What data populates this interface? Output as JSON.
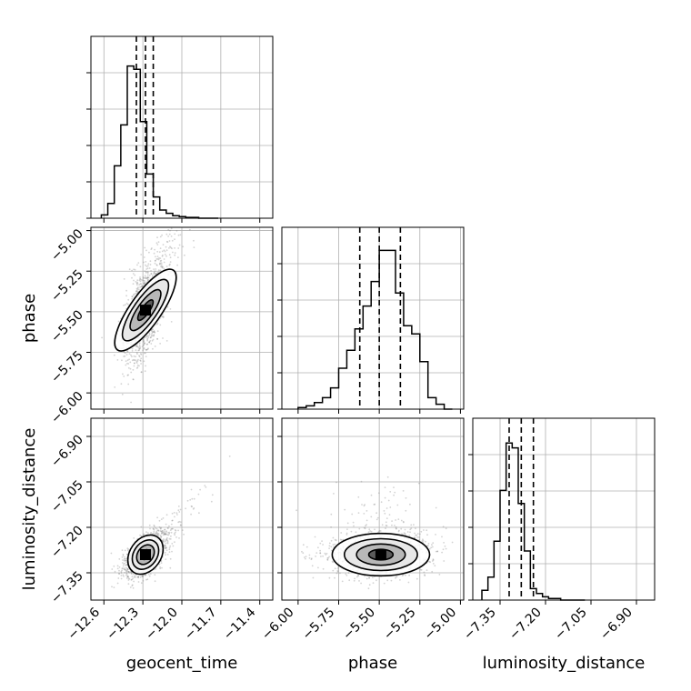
{
  "chart_data": {
    "type": "corner",
    "parameters": [
      "geocent_time",
      "phase",
      "luminosity_distance"
    ],
    "axis_labels": {
      "geocent_time": "geocent_time",
      "phase": "phase",
      "luminosity_distance": "luminosity_distance"
    },
    "ranges": {
      "geocent_time": [
        -12.7,
        -11.3
      ],
      "phase": [
        -6.1,
        -4.98
      ],
      "luminosity_distance": [
        -7.44,
        -6.84
      ]
    },
    "ticks": {
      "geocent_time": [
        -12.6,
        -12.3,
        -12.0,
        -11.7,
        -11.4
      ],
      "phase": [
        -6.0,
        -5.75,
        -5.5,
        -5.25,
        -5.0
      ],
      "luminosity_distance": [
        -7.35,
        -7.2,
        -7.05,
        -6.9
      ]
    },
    "tick_labels": {
      "geocent_time": [
        "−12.6",
        "−12.3",
        "−12.0",
        "−11.7",
        "−11.4"
      ],
      "phase": [
        "−6.00",
        "−5.75",
        "−5.50",
        "−5.25",
        "−5.00"
      ],
      "luminosity_distance": [
        "−7.35",
        "−7.20",
        "−7.05",
        "−6.90"
      ]
    },
    "quantile_lines": {
      "geocent_time": [
        -12.35,
        -12.28,
        -12.22
      ],
      "phase": [
        -5.62,
        -5.5,
        -5.37
      ],
      "luminosity_distance": [
        -7.32,
        -7.28,
        -7.24
      ]
    },
    "histograms": {
      "geocent_time": {
        "edges": [
          -12.62,
          -12.57,
          -12.52,
          -12.47,
          -12.42,
          -12.37,
          -12.32,
          -12.27,
          -12.22,
          -12.17,
          -12.12,
          -12.07,
          -12.02,
          -11.97,
          -11.92,
          -11.87,
          -11.82,
          -11.77,
          -11.72
        ],
        "counts": [
          0.02,
          0.09,
          0.32,
          0.57,
          0.93,
          0.91,
          0.59,
          0.27,
          0.13,
          0.05,
          0.03,
          0.015,
          0.01,
          0.005,
          0.005,
          0.0,
          0.0,
          0.0
        ]
      },
      "phase": {
        "edges": [
          -6.0,
          -5.95,
          -5.9,
          -5.85,
          -5.8,
          -5.75,
          -5.7,
          -5.65,
          -5.6,
          -5.55,
          -5.5,
          -5.45,
          -5.4,
          -5.35,
          -5.3,
          -5.25,
          -5.2,
          -5.15,
          -5.1,
          -5.05
        ],
        "counts": [
          0.01,
          0.02,
          0.04,
          0.07,
          0.13,
          0.25,
          0.36,
          0.49,
          0.63,
          0.78,
          0.97,
          0.97,
          0.71,
          0.51,
          0.46,
          0.29,
          0.07,
          0.03,
          0.0
        ]
      },
      "luminosity_distance": {
        "edges": [
          -7.41,
          -7.39,
          -7.37,
          -7.35,
          -7.33,
          -7.31,
          -7.29,
          -7.27,
          -7.25,
          -7.23,
          -7.21,
          -7.19,
          -7.17,
          -7.15,
          -7.13,
          -7.11,
          -7.09,
          -7.07
        ],
        "counts": [
          0.06,
          0.14,
          0.36,
          0.67,
          0.96,
          0.93,
          0.59,
          0.3,
          0.07,
          0.04,
          0.02,
          0.01,
          0.01,
          0.0,
          0.0,
          0.0,
          0.0
        ]
      }
    },
    "posterior_mode": {
      "geocent_time": -12.28,
      "phase": -5.49,
      "luminosity_distance": -7.29
    },
    "contour_levels": [
      "0.5",
      "1.0",
      "1.5",
      "2.0"
    ],
    "grid": true,
    "colors": {
      "histogram_line": "#000000",
      "quantile_line": "#000000",
      "contour": "#000000",
      "sample_points": "#808080",
      "grid": "#b0b0b0"
    }
  }
}
